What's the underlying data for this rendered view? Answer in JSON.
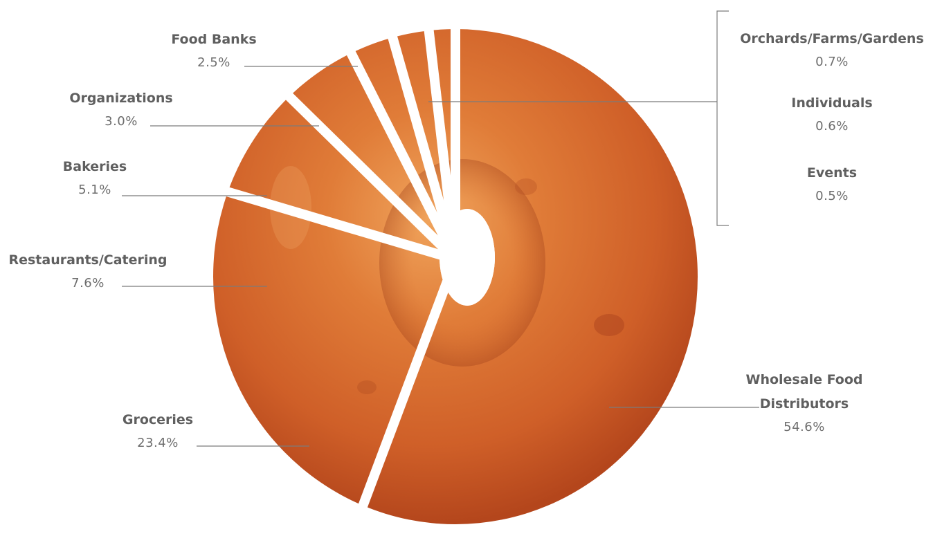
{
  "chart_data": {
    "type": "pie",
    "title": "",
    "slices": [
      {
        "name": "Wholesale Food Distributors",
        "name_lines": [
          "Wholesale Food",
          "Distributors"
        ],
        "value": 54.6,
        "label": "54.6%"
      },
      {
        "name": "Groceries",
        "name_lines": [
          "Groceries"
        ],
        "value": 23.4,
        "label": "23.4%"
      },
      {
        "name": "Restaurants/Catering",
        "name_lines": [
          "Restaurants/Catering"
        ],
        "value": 7.6,
        "label": "7.6%"
      },
      {
        "name": "Bakeries",
        "name_lines": [
          "Bakeries"
        ],
        "value": 5.1,
        "label": "5.1%"
      },
      {
        "name": "Organizations",
        "name_lines": [
          "Organizations"
        ],
        "value": 3.0,
        "label": "3.0%"
      },
      {
        "name": "Food Banks",
        "name_lines": [
          "Food Banks"
        ],
        "value": 2.5,
        "label": "2.5%"
      },
      {
        "name": "Orchards/Farms/Gardens",
        "name_lines": [
          "Orchards/Farms/Gardens"
        ],
        "value": 0.7,
        "label": "0.7%"
      },
      {
        "name": "Individuals",
        "name_lines": [
          "Individuals"
        ],
        "value": 0.6,
        "label": "0.6%"
      },
      {
        "name": "Events",
        "name_lines": [
          "Events"
        ],
        "value": 0.5,
        "label": "0.5%"
      }
    ],
    "grouped_small_slices": [
      "Orchards/Farms/Gardens",
      "Individuals",
      "Events"
    ],
    "legend": "none",
    "colors": {
      "bagel_light": "#e8883e",
      "bagel_mid": "#d0612a",
      "bagel_dark": "#a8401c",
      "label_text": "#5f5f5f",
      "leader_line": "#7b7b7b",
      "divider": "#ffffff"
    }
  }
}
